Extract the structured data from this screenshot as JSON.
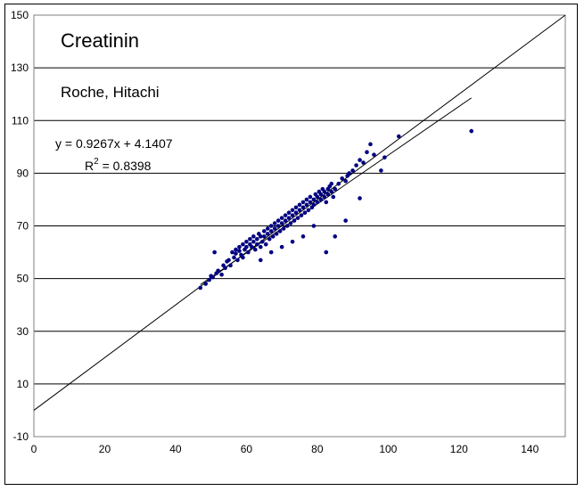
{
  "chart_data": {
    "type": "scatter",
    "title": "Creatinin",
    "subtitle": "Roche, Hitachi",
    "xlabel": "",
    "ylabel": "",
    "xlim": [
      0,
      150
    ],
    "ylim": [
      -10,
      150
    ],
    "x_ticks": [
      0,
      20,
      40,
      60,
      80,
      100,
      120,
      140
    ],
    "y_ticks": [
      -10,
      10,
      30,
      50,
      70,
      90,
      110,
      130,
      150
    ],
    "grid": "horizontal",
    "legend": "none",
    "point_color": "#000080",
    "line_color": "#000000",
    "annotations": {
      "equation": "y = 0.9267x + 4.1407",
      "r2_prefix": "R",
      "r2_sup": "2",
      "r2_value": " = 0.8398"
    },
    "identity_line": {
      "x": [
        0,
        150
      ],
      "y": [
        0,
        150
      ]
    },
    "regression": {
      "slope": 0.9267,
      "intercept": 4.1407,
      "x_range": [
        47,
        123.5
      ]
    },
    "series": [
      {
        "values": [
          [
            47,
            46.5
          ],
          [
            48.5,
            48
          ],
          [
            49.5,
            49.5
          ],
          [
            50,
            51
          ],
          [
            50.5,
            50.5
          ],
          [
            51,
            60
          ],
          [
            51.5,
            52
          ],
          [
            52,
            53
          ],
          [
            53,
            51.5
          ],
          [
            53.5,
            55
          ],
          [
            54,
            54
          ],
          [
            54.5,
            56.5
          ],
          [
            55,
            57
          ],
          [
            55.5,
            55
          ],
          [
            56,
            60
          ],
          [
            56.5,
            58
          ],
          [
            57,
            59.5
          ],
          [
            57,
            61
          ],
          [
            57.5,
            57
          ],
          [
            58,
            62
          ],
          [
            58,
            60.5
          ],
          [
            58.5,
            59
          ],
          [
            59,
            63
          ],
          [
            59,
            58
          ],
          [
            59.5,
            61
          ],
          [
            60,
            62
          ],
          [
            60,
            64
          ],
          [
            60.5,
            60
          ],
          [
            61,
            63
          ],
          [
            61,
            65
          ],
          [
            61.5,
            62
          ],
          [
            62,
            64
          ],
          [
            62,
            66
          ],
          [
            62.5,
            61
          ],
          [
            63,
            65
          ],
          [
            63,
            63
          ],
          [
            63.5,
            67
          ],
          [
            64,
            66
          ],
          [
            64,
            62
          ],
          [
            64.5,
            64
          ],
          [
            65,
            68
          ],
          [
            65,
            66
          ],
          [
            65.5,
            63
          ],
          [
            66,
            67
          ],
          [
            66,
            69
          ],
          [
            66.5,
            65
          ],
          [
            67,
            68
          ],
          [
            67,
            70
          ],
          [
            67.5,
            66
          ],
          [
            68,
            69
          ],
          [
            68,
            71
          ],
          [
            68.5,
            67
          ],
          [
            69,
            70
          ],
          [
            69,
            72
          ],
          [
            69.5,
            68
          ],
          [
            70,
            71
          ],
          [
            70,
            73
          ],
          [
            70.5,
            69
          ],
          [
            71,
            72
          ],
          [
            71,
            74
          ],
          [
            71.5,
            70
          ],
          [
            72,
            73
          ],
          [
            72,
            75
          ],
          [
            72.5,
            71
          ],
          [
            73,
            74
          ],
          [
            73,
            76
          ],
          [
            73.5,
            72
          ],
          [
            74,
            75
          ],
          [
            74,
            77
          ],
          [
            74.5,
            73
          ],
          [
            75,
            76
          ],
          [
            75,
            78
          ],
          [
            75.5,
            74
          ],
          [
            76,
            77
          ],
          [
            76,
            79
          ],
          [
            76.5,
            75
          ],
          [
            77,
            78
          ],
          [
            77,
            80
          ],
          [
            77.5,
            76
          ],
          [
            78,
            79
          ],
          [
            78,
            81
          ],
          [
            78.5,
            77
          ],
          [
            79,
            80
          ],
          [
            79,
            78
          ],
          [
            79.5,
            82
          ],
          [
            80,
            81
          ],
          [
            80,
            79
          ],
          [
            80.5,
            83
          ],
          [
            81,
            80
          ],
          [
            81,
            82
          ],
          [
            81.5,
            84
          ],
          [
            82,
            81
          ],
          [
            82,
            83
          ],
          [
            82.5,
            79
          ],
          [
            83,
            84
          ],
          [
            83,
            82
          ],
          [
            83.5,
            85
          ],
          [
            84,
            83
          ],
          [
            84,
            86
          ],
          [
            84.5,
            81
          ],
          [
            85,
            84
          ],
          [
            86,
            86
          ],
          [
            87,
            88
          ],
          [
            88,
            87
          ],
          [
            88.5,
            89
          ],
          [
            89,
            90
          ],
          [
            90,
            91
          ],
          [
            91,
            93
          ],
          [
            92,
            95
          ],
          [
            93,
            94
          ],
          [
            94,
            98
          ],
          [
            95,
            101
          ],
          [
            96,
            97
          ],
          [
            98,
            91
          ],
          [
            99,
            96
          ],
          [
            103,
            104
          ],
          [
            123.5,
            106
          ],
          [
            82.5,
            60
          ],
          [
            92,
            80.5
          ],
          [
            85,
            66
          ],
          [
            88,
            72
          ],
          [
            64,
            57
          ],
          [
            67,
            60
          ],
          [
            70,
            62
          ],
          [
            73,
            64
          ],
          [
            76,
            66
          ],
          [
            79,
            70
          ]
        ]
      }
    ]
  }
}
